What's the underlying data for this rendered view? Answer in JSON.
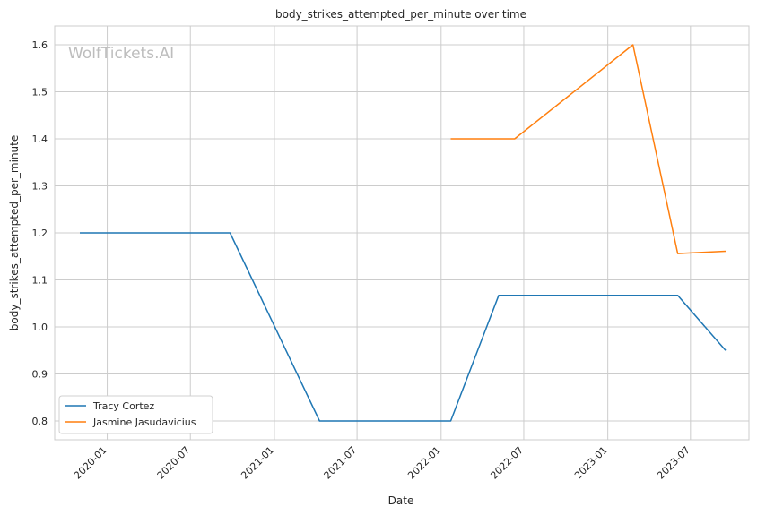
{
  "chart_data": {
    "type": "line",
    "title": "body_strikes_attempted_per_minute over time",
    "xlabel": "Date",
    "ylabel": "body_strikes_attempted_per_minute",
    "watermark": "WolfTickets.AI",
    "x_ticks": [
      "2020-01",
      "2020-07",
      "2021-01",
      "2021-07",
      "2022-01",
      "2022-07",
      "2023-01",
      "2023-07"
    ],
    "y_ticks": [
      0.8,
      0.9,
      1.0,
      1.1,
      1.2,
      1.3,
      1.4,
      1.5,
      1.6
    ],
    "xlim": [
      "2019-09-08",
      "2023-11-06"
    ],
    "ylim": [
      0.76,
      1.64
    ],
    "grid": true,
    "legend_position": "lower-left",
    "series": [
      {
        "name": "Tracy Cortez",
        "color": "#1f77b4",
        "points": [
          {
            "x": "2019-11-02",
            "y": 1.2
          },
          {
            "x": "2020-09-26",
            "y": 1.2
          },
          {
            "x": "2021-04-10",
            "y": 0.8
          },
          {
            "x": "2022-01-22",
            "y": 0.8
          },
          {
            "x": "2022-05-07",
            "y": 1.067
          },
          {
            "x": "2023-06-03",
            "y": 1.067
          },
          {
            "x": "2023-09-16",
            "y": 0.95
          }
        ]
      },
      {
        "name": "Jasmine Jasudavicius",
        "color": "#ff7f0e",
        "points": [
          {
            "x": "2022-01-22",
            "y": 1.4
          },
          {
            "x": "2022-06-11",
            "y": 1.4
          },
          {
            "x": "2023-02-25",
            "y": 1.6
          },
          {
            "x": "2023-06-03",
            "y": 1.156
          },
          {
            "x": "2023-09-16",
            "y": 1.161
          }
        ]
      }
    ]
  }
}
